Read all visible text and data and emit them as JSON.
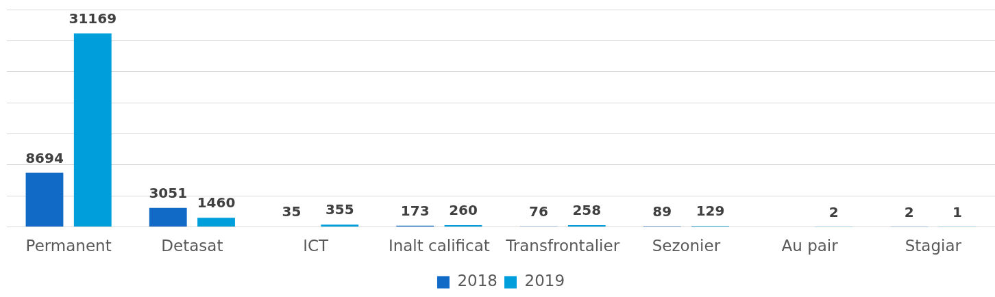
{
  "chart_data": {
    "type": "bar",
    "categories": [
      "Permanent",
      "Detasat",
      "ICT",
      "Inalt calificat",
      "Transfrontalier",
      "Sezonier",
      "Au pair",
      "Stagiar"
    ],
    "series": [
      {
        "name": "2018",
        "color": "#106ac6",
        "values": [
          8694,
          3051,
          35,
          173,
          76,
          89,
          null,
          2
        ]
      },
      {
        "name": "2019",
        "color": "#009fdb",
        "values": [
          31169,
          1460,
          355,
          260,
          258,
          129,
          2,
          1
        ]
      }
    ],
    "tick_labels": "x",
    "grid": "y",
    "legend": "bottom",
    "data_labels": true
  }
}
